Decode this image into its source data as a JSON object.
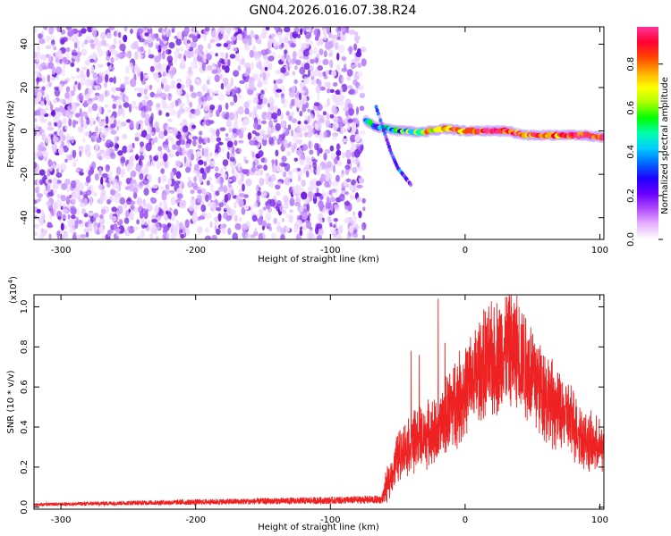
{
  "chart_data": [
    {
      "type": "heatmap",
      "title": "GN04.2026.016.07.38.R24",
      "xlabel": "Height of straight line (km)",
      "ylabel": "Frequency (Hz)",
      "xlim": [
        -320,
        103
      ],
      "ylim": [
        -50,
        48
      ],
      "xticks": [
        -300,
        -200,
        -100,
        0,
        100
      ],
      "yticks": [
        -40,
        -20,
        0,
        20,
        40
      ],
      "noise_region_x": [
        -320,
        -75
      ],
      "signal_track": [
        {
          "x": -74,
          "f": 5,
          "amp": 0.45
        },
        {
          "x": -66,
          "f": 2,
          "amp": 0.35
        },
        {
          "x": -58,
          "f": 1,
          "amp": 0.4
        },
        {
          "x": -50,
          "f": 0,
          "amp": 0.45
        },
        {
          "x": -42,
          "f": 0,
          "amp": 0.5
        },
        {
          "x": -35,
          "f": -1,
          "amp": 0.6
        },
        {
          "x": -25,
          "f": 0,
          "amp": 0.65
        },
        {
          "x": -15,
          "f": 1,
          "amp": 0.8
        },
        {
          "x": 0,
          "f": 0,
          "amp": 0.85
        },
        {
          "x": 15,
          "f": 0,
          "amp": 0.85
        },
        {
          "x": 30,
          "f": 0,
          "amp": 0.85
        },
        {
          "x": 45,
          "f": -2,
          "amp": 0.8
        },
        {
          "x": 60,
          "f": -2,
          "amp": 0.8
        },
        {
          "x": 75,
          "f": -2,
          "amp": 0.9
        },
        {
          "x": 90,
          "f": -2,
          "amp": 0.95
        },
        {
          "x": 103,
          "f": -3,
          "amp": 0.9
        }
      ],
      "branch_track": [
        {
          "x": -66,
          "f": 11,
          "amp": 0.15
        },
        {
          "x": -55,
          "f": -10,
          "amp": 0.2
        },
        {
          "x": -50,
          "f": -17,
          "amp": 0.25
        },
        {
          "x": -40,
          "f": -25,
          "amp": 0.1
        }
      ],
      "colorbar": {
        "label": "Normalized spectral amplitude",
        "range": [
          0.0,
          0.97
        ],
        "ticks": [
          0.0,
          0.2,
          0.4,
          0.6,
          0.8
        ],
        "tick_labels": [
          "0.0",
          "0.2",
          "0.4",
          "0.6",
          "0.8"
        ],
        "colors": [
          "#ffffff",
          "#e6b3ff",
          "#b44dff",
          "#6a00ff",
          "#2000ff",
          "#0066ff",
          "#00ccff",
          "#00ffaa",
          "#00ff00",
          "#aaff00",
          "#ffff00",
          "#ffaa00",
          "#ff4400",
          "#ff0033",
          "#ff3399"
        ]
      }
    },
    {
      "type": "line",
      "xlabel": "Height of straight line (km)",
      "ylabel": "SNR (10 * v/v)",
      "y_multiplier": "(x10",
      "y_multiplier_exp": "4",
      "y_multiplier_close": ")",
      "xlim": [
        -320,
        103
      ],
      "ylim": [
        -0.01,
        1.06
      ],
      "xticks": [
        -300,
        -200,
        -100,
        0,
        100
      ],
      "yticks": [
        0.0,
        0.2,
        0.4,
        0.6,
        0.8,
        1.0
      ],
      "ytick_labels": [
        "0.0",
        "0.2",
        "0.4",
        "0.6",
        "0.8",
        "1.0"
      ],
      "line_color": "#ee2222",
      "envelope": [
        {
          "x": -320,
          "y": 0.015
        },
        {
          "x": -250,
          "y": 0.025
        },
        {
          "x": -150,
          "y": 0.035
        },
        {
          "x": -100,
          "y": 0.04
        },
        {
          "x": -62,
          "y": 0.045
        },
        {
          "x": -58,
          "y": 0.12
        },
        {
          "x": -50,
          "y": 0.3
        },
        {
          "x": -40,
          "y": 0.38
        },
        {
          "x": -30,
          "y": 0.42
        },
        {
          "x": -20,
          "y": 0.45
        },
        {
          "x": -10,
          "y": 0.6
        },
        {
          "x": 0,
          "y": 0.68
        },
        {
          "x": 10,
          "y": 0.8
        },
        {
          "x": 20,
          "y": 0.86
        },
        {
          "x": 30,
          "y": 0.92
        },
        {
          "x": 40,
          "y": 0.9
        },
        {
          "x": 50,
          "y": 0.78
        },
        {
          "x": 60,
          "y": 0.66
        },
        {
          "x": 70,
          "y": 0.55
        },
        {
          "x": 80,
          "y": 0.5
        },
        {
          "x": 90,
          "y": 0.38
        },
        {
          "x": 103,
          "y": 0.34
        }
      ],
      "spikes": [
        {
          "x": -40,
          "y": 0.78
        },
        {
          "x": -34,
          "y": 0.76
        },
        {
          "x": -20,
          "y": 1.04
        },
        {
          "x": -15,
          "y": 0.82
        },
        {
          "x": 30,
          "y": 1.05
        },
        {
          "x": 40,
          "y": 1.0
        }
      ]
    }
  ]
}
